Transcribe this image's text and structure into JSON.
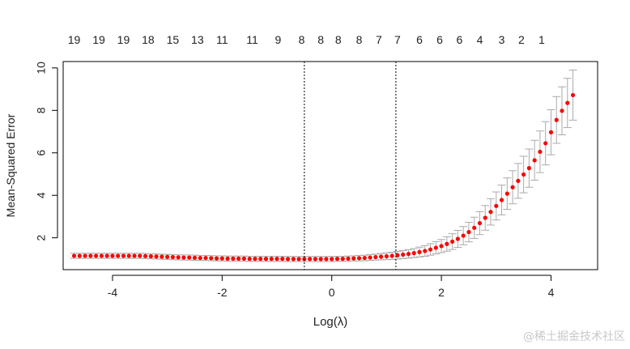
{
  "chart_data": {
    "type": "scatter",
    "xlabel": "Log(λ)",
    "ylabel": "Mean-Squared Error",
    "xlim": [
      -4.9,
      4.85
    ],
    "ylim": [
      0.5,
      10.3
    ],
    "x_ticks": [
      -4,
      -2,
      0,
      2,
      4
    ],
    "y_ticks": [
      2,
      4,
      6,
      8,
      10
    ],
    "top_axis_labels": [
      "19",
      "19",
      "19",
      "18",
      "15",
      "13",
      "11",
      "11",
      "9",
      "8",
      "8",
      "8",
      "8",
      "7",
      "7",
      "6",
      "6",
      "6",
      "4",
      "3",
      "2",
      "1"
    ],
    "top_axis_positions": [
      -4.7,
      -4.25,
      -3.8,
      -3.35,
      -2.9,
      -2.45,
      -2.0,
      -1.45,
      -0.98,
      -0.55,
      -0.2,
      0.12,
      0.5,
      0.86,
      1.2,
      1.6,
      1.97,
      2.33,
      2.7,
      3.1,
      3.46,
      3.83
    ],
    "vlines": [
      -0.5,
      1.17
    ],
    "grid": false,
    "point_color": "#ff0000",
    "errorbar_color": "#aaaaaa",
    "x": [
      -4.7,
      -4.6,
      -4.5,
      -4.4,
      -4.3,
      -4.2,
      -4.1,
      -4.0,
      -3.9,
      -3.8,
      -3.7,
      -3.6,
      -3.5,
      -3.4,
      -3.3,
      -3.2,
      -3.1,
      -3.0,
      -2.9,
      -2.8,
      -2.7,
      -2.6,
      -2.5,
      -2.4,
      -2.3,
      -2.2,
      -2.1,
      -2.0,
      -1.9,
      -1.8,
      -1.7,
      -1.6,
      -1.5,
      -1.4,
      -1.3,
      -1.2,
      -1.1,
      -1.0,
      -0.9,
      -0.8,
      -0.7,
      -0.6,
      -0.5,
      -0.4,
      -0.3,
      -0.2,
      -0.1,
      0.0,
      0.1,
      0.2,
      0.3,
      0.4,
      0.5,
      0.6,
      0.7,
      0.8,
      0.9,
      1.0,
      1.1,
      1.2,
      1.3,
      1.4,
      1.5,
      1.6,
      1.7,
      1.8,
      1.9,
      2.0,
      2.1,
      2.2,
      2.3,
      2.4,
      2.5,
      2.6,
      2.7,
      2.8,
      2.9,
      3.0,
      3.1,
      3.2,
      3.3,
      3.4,
      3.5,
      3.6,
      3.7,
      3.8,
      3.9,
      4.0,
      4.1,
      4.2,
      4.3,
      4.4
    ],
    "y": [
      1.15,
      1.15,
      1.15,
      1.15,
      1.15,
      1.15,
      1.15,
      1.15,
      1.15,
      1.15,
      1.15,
      1.15,
      1.15,
      1.14,
      1.13,
      1.12,
      1.11,
      1.1,
      1.09,
      1.08,
      1.07,
      1.07,
      1.06,
      1.05,
      1.05,
      1.04,
      1.03,
      1.03,
      1.02,
      1.02,
      1.02,
      1.02,
      1.01,
      1.01,
      1.01,
      1.01,
      1.01,
      1.01,
      1.01,
      1.0,
      1.0,
      1.0,
      1.0,
      1.0,
      1.0,
      1.0,
      1.0,
      1.0,
      1.01,
      1.01,
      1.02,
      1.03,
      1.04,
      1.05,
      1.07,
      1.09,
      1.11,
      1.13,
      1.15,
      1.18,
      1.21,
      1.24,
      1.28,
      1.33,
      1.38,
      1.45,
      1.53,
      1.61,
      1.71,
      1.82,
      1.95,
      2.1,
      2.27,
      2.47,
      2.69,
      2.94,
      3.22,
      3.5,
      3.78,
      4.08,
      4.38,
      4.68,
      4.98,
      5.28,
      5.65,
      6.05,
      6.45,
      6.97,
      7.55,
      7.98,
      8.35,
      8.72
    ],
    "err": [
      0.12,
      0.12,
      0.12,
      0.12,
      0.12,
      0.12,
      0.12,
      0.12,
      0.12,
      0.12,
      0.12,
      0.12,
      0.12,
      0.12,
      0.12,
      0.12,
      0.12,
      0.12,
      0.12,
      0.12,
      0.12,
      0.12,
      0.12,
      0.12,
      0.12,
      0.12,
      0.12,
      0.12,
      0.12,
      0.12,
      0.12,
      0.12,
      0.12,
      0.12,
      0.12,
      0.12,
      0.12,
      0.12,
      0.12,
      0.12,
      0.12,
      0.12,
      0.12,
      0.12,
      0.12,
      0.12,
      0.12,
      0.12,
      0.12,
      0.12,
      0.12,
      0.12,
      0.13,
      0.13,
      0.14,
      0.14,
      0.15,
      0.16,
      0.17,
      0.18,
      0.19,
      0.2,
      0.21,
      0.23,
      0.25,
      0.27,
      0.29,
      0.31,
      0.34,
      0.37,
      0.4,
      0.43,
      0.46,
      0.5,
      0.54,
      0.58,
      0.62,
      0.66,
      0.7,
      0.74,
      0.78,
      0.82,
      0.86,
      0.9,
      0.94,
      0.98,
      1.02,
      1.06,
      1.1,
      1.13,
      1.16,
      1.18
    ]
  },
  "watermark": "@稀土掘金技术社区"
}
